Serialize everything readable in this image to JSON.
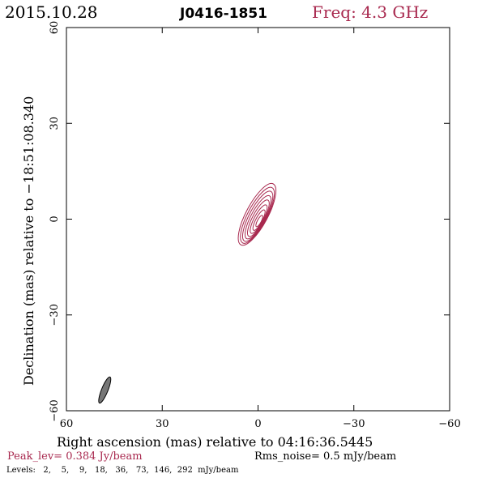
{
  "header": {
    "date": "2015.10.28",
    "source": "J0416-1851",
    "freq": "Freq: 4.3 GHz"
  },
  "footer": {
    "peak": "Peak_lev=  0.384 Jy/beam",
    "rms": "Rms_noise=  0.5 mJy/beam",
    "levels": "Levels:   2,    5,    9,   18,   36,   73,  146,  292  mJy/beam"
  },
  "colors": {
    "contour": "#a8284e",
    "beam": "#777777",
    "axis": "#000000"
  },
  "chart_data": {
    "type": "contour",
    "xlabel": "Right ascension (mas) relative to 04:16:36.5445",
    "ylabel": "Declination (mas) relative to −18:51:08.340",
    "xlim": [
      60,
      -60
    ],
    "ylim": [
      -60,
      60
    ],
    "x_ticks": [
      60,
      30,
      0,
      -30,
      -60
    ],
    "y_ticks": [
      -60,
      -30,
      0,
      30,
      60
    ],
    "x_tick_labels": [
      "60",
      "30",
      "0",
      "−30",
      "−60"
    ],
    "y_tick_labels": [
      "−60",
      "−30",
      "0",
      "30",
      "60"
    ],
    "contour_levels_mJy": [
      2,
      5,
      9,
      18,
      36,
      73,
      146,
      292
    ],
    "peak_Jy_per_beam": 0.384,
    "rms_mJy_per_beam": 0.5,
    "component": {
      "x": 0,
      "y": 1,
      "pa_deg": -28
    },
    "contours": [
      {
        "level": 2,
        "x": 0.3,
        "y": 1.5,
        "major": 10.8,
        "minor": 3.4
      },
      {
        "level": 5,
        "x": 0.2,
        "y": 1.2,
        "major": 9.8,
        "minor": 3.0
      },
      {
        "level": 9,
        "x": 0.1,
        "y": 0.9,
        "major": 8.8,
        "minor": 2.6
      },
      {
        "level": 18,
        "x": 0.0,
        "y": 0.6,
        "major": 7.6,
        "minor": 2.2
      },
      {
        "level": 36,
        "x": -0.1,
        "y": 0.3,
        "major": 6.4,
        "minor": 1.8
      },
      {
        "level": 73,
        "x": -0.2,
        "y": 0.0,
        "major": 5.0,
        "minor": 1.4
      },
      {
        "level": 146,
        "x": -0.3,
        "y": -0.3,
        "major": 3.6,
        "minor": 1.0
      },
      {
        "level": 292,
        "x": -0.4,
        "y": -0.6,
        "major": 2.0,
        "minor": 0.6
      }
    ],
    "beam": {
      "x": 48.0,
      "y": -53.5,
      "major": 4.4,
      "minor": 1.0,
      "pa_deg": -22
    }
  }
}
